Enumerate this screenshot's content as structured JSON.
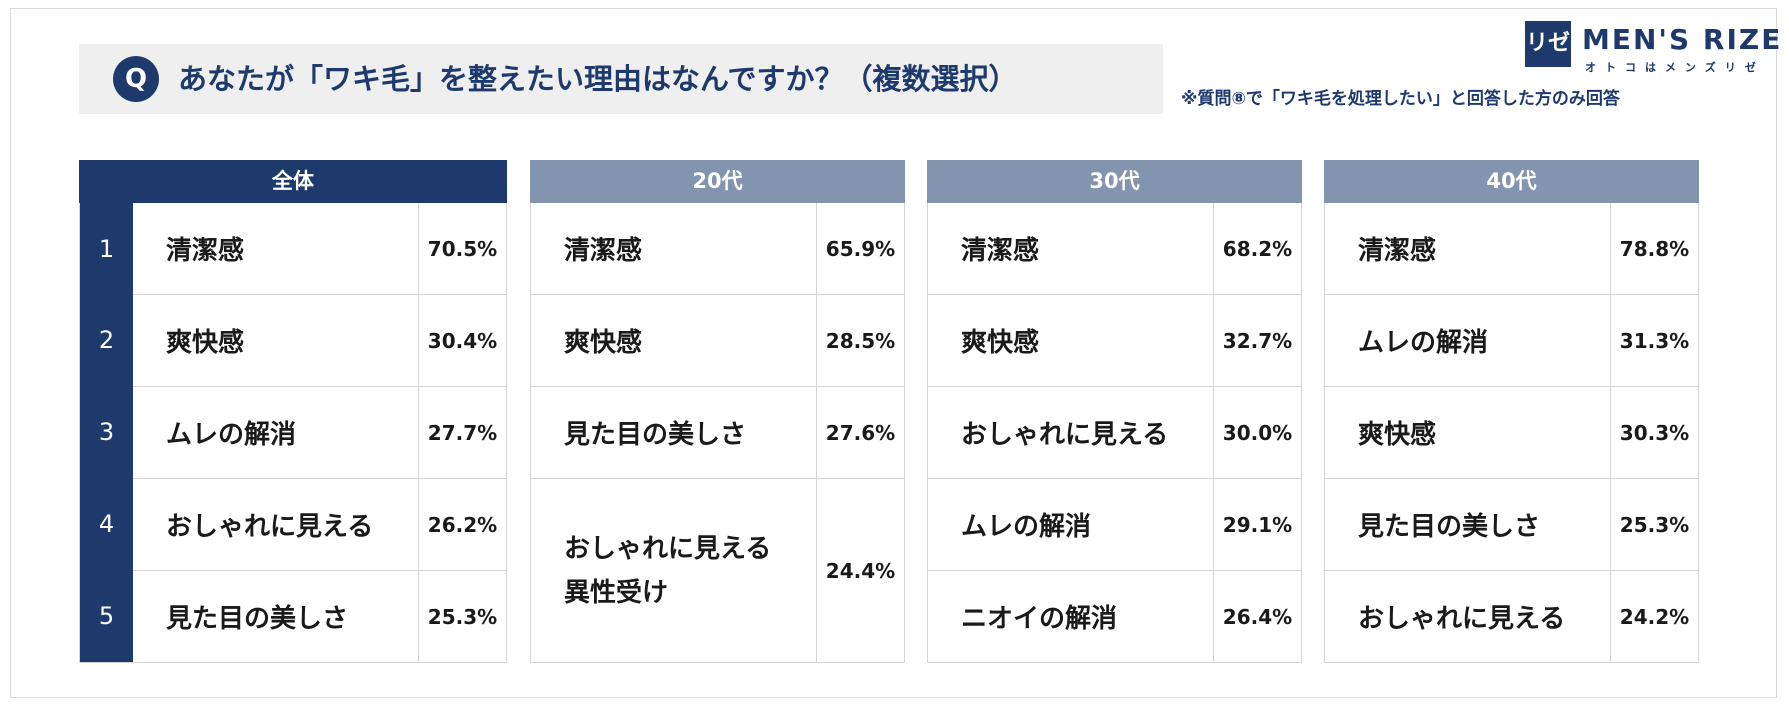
{
  "question": {
    "badge": "Q",
    "text": "あなたが「ワキ毛」を整えたい理由はなんですか？（複数選択）"
  },
  "note": "※質問⑧で「ワキ毛を処理したい」と回答した方のみ回答",
  "logo": {
    "mark": "リゼ",
    "name": "MEN'S RIZE",
    "sub": "オトコはメンズリゼ"
  },
  "colors": {
    "navy": "#1e3a6d",
    "gray_blue": "#8395ae"
  },
  "panels": [
    {
      "header": "全体",
      "rows": [
        {
          "rank": "1",
          "label": "清潔感",
          "pct": "70.5%"
        },
        {
          "rank": "2",
          "label": "爽快感",
          "pct": "30.4%"
        },
        {
          "rank": "3",
          "label": "ムレの解消",
          "pct": "27.7%"
        },
        {
          "rank": "4",
          "label": "おしゃれに見える",
          "pct": "26.2%"
        },
        {
          "rank": "5",
          "label": "見た目の美しさ",
          "pct": "25.3%"
        }
      ]
    },
    {
      "header": "20代",
      "rows": [
        {
          "label": "清潔感",
          "pct": "65.9%"
        },
        {
          "label": "爽快感",
          "pct": "28.5%"
        },
        {
          "label": "見た目の美しさ",
          "pct": "27.6%"
        },
        {
          "label": "おしゃれに見える",
          "label2": "異性受け",
          "pct": "24.4%"
        }
      ]
    },
    {
      "header": "30代",
      "rows": [
        {
          "label": "清潔感",
          "pct": "68.2%"
        },
        {
          "label": "爽快感",
          "pct": "32.7%"
        },
        {
          "label": "おしゃれに見える",
          "pct": "30.0%"
        },
        {
          "label": "ムレの解消",
          "pct": "29.1%"
        },
        {
          "label": "ニオイの解消",
          "pct": "26.4%"
        }
      ]
    },
    {
      "header": "40代",
      "rows": [
        {
          "label": "清潔感",
          "pct": "78.8%"
        },
        {
          "label": "ムレの解消",
          "pct": "31.3%"
        },
        {
          "label": "爽快感",
          "pct": "30.3%"
        },
        {
          "label": "見た目の美しさ",
          "pct": "25.3%"
        },
        {
          "label": "おしゃれに見える",
          "pct": "24.2%"
        }
      ]
    }
  ]
}
